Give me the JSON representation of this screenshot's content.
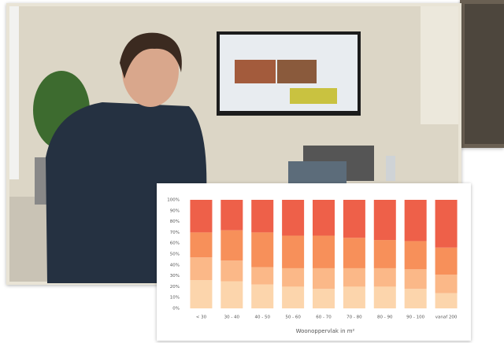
{
  "chart_data": {
    "type": "stacked_bar_100",
    "xlabel": "Woonoppervlak in m²",
    "categories": [
      "< 30",
      "30 - 40",
      "40 - 50",
      "50 - 60",
      "60 - 70",
      "70 - 80",
      "80 - 90",
      "90 - 100",
      "vanaf 200"
    ],
    "series": [
      {
        "color": "#fcd5ac",
        "values": [
          26,
          25,
          22,
          20,
          18,
          20,
          20,
          18,
          14
        ]
      },
      {
        "color": "#fbb888",
        "values": [
          21,
          19,
          16,
          17,
          19,
          17,
          17,
          18,
          17
        ]
      },
      {
        "color": "#f7905a",
        "values": [
          23,
          28,
          32,
          30,
          30,
          28,
          26,
          26,
          25
        ]
      },
      {
        "color": "#ee6049",
        "values": [
          30,
          28,
          30,
          33,
          33,
          35,
          37,
          38,
          44
        ]
      }
    ],
    "ylim": [
      0,
      100
    ],
    "yticks": [
      {
        "value": 0,
        "label": "0%"
      },
      {
        "value": 10,
        "label": "10%"
      },
      {
        "value": 20,
        "label": "20%"
      },
      {
        "value": 30,
        "label": "30%"
      },
      {
        "value": 40,
        "label": "40%"
      },
      {
        "value": 50,
        "label": "50%"
      },
      {
        "value": 60,
        "label": "60%"
      },
      {
        "value": 70,
        "label": "70%"
      },
      {
        "value": 80,
        "label": "80%"
      },
      {
        "value": 90,
        "label": "90%"
      },
      {
        "value": 100,
        "label": "100%"
      }
    ]
  }
}
